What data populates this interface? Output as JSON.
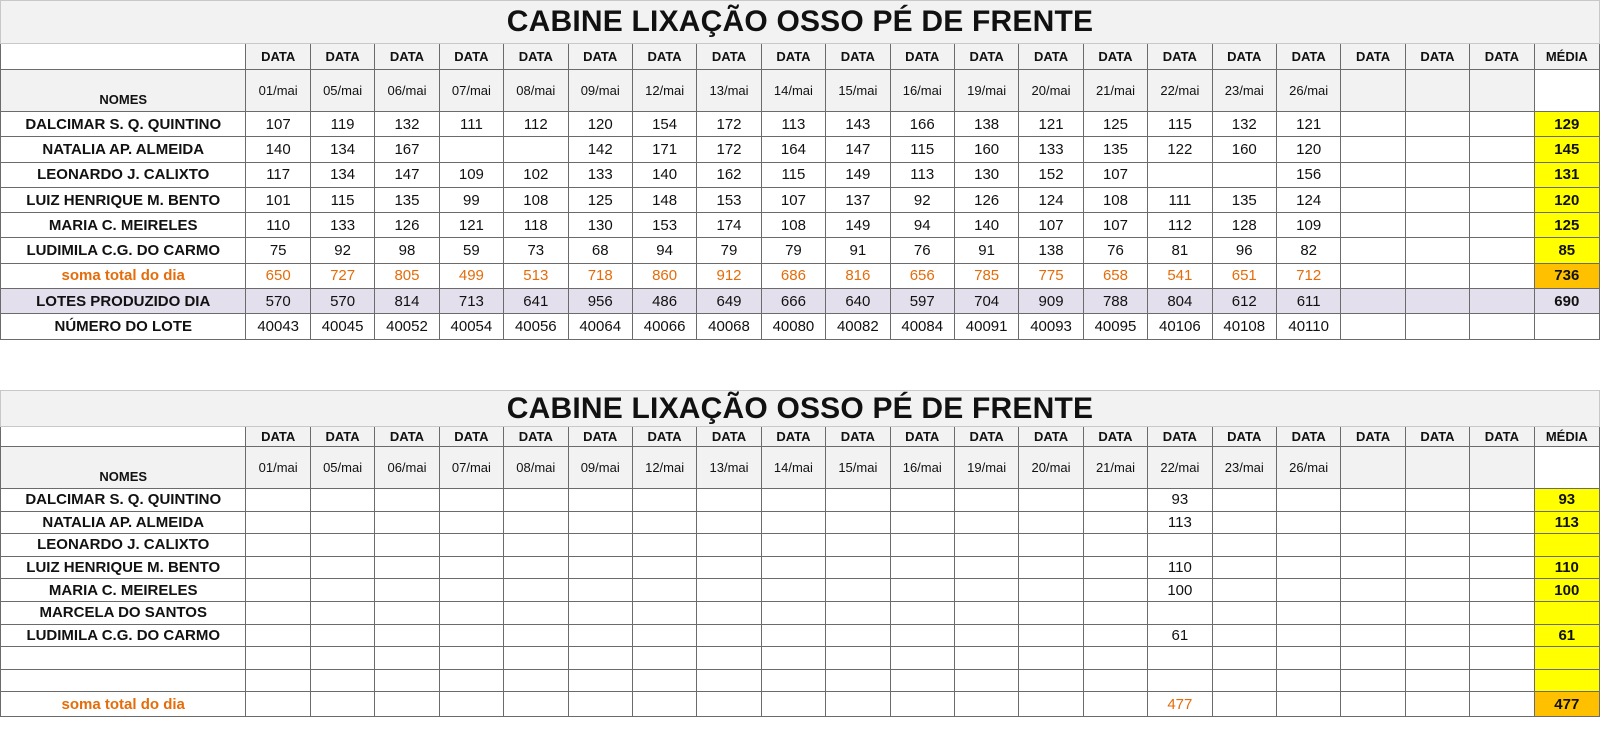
{
  "dates": [
    "01/mai",
    "05/mai",
    "06/mai",
    "07/mai",
    "08/mai",
    "09/mai",
    "12/mai",
    "13/mai",
    "14/mai",
    "15/mai",
    "16/mai",
    "19/mai",
    "20/mai",
    "21/mai",
    "22/mai",
    "23/mai",
    "26/mai",
    "",
    "",
    ""
  ],
  "labels": {
    "data": "DATA",
    "media": "MÉDIA",
    "nomes": "NOMES"
  },
  "table1": {
    "title": "CABINE LIXAÇÃO OSSO PÉ DE  FRENTE",
    "rows": [
      {
        "name": "DALCIMAR S. Q. QUINTINO",
        "values": [
          "107",
          "119",
          "132",
          "111",
          "112",
          "120",
          "154",
          "172",
          "113",
          "143",
          "166",
          "138",
          "121",
          "125",
          "115",
          "132",
          "121",
          "",
          "",
          ""
        ],
        "avg": "129"
      },
      {
        "name": "NATALIA AP. ALMEIDA",
        "values": [
          "140",
          "134",
          "167",
          "",
          "",
          "142",
          "171",
          "172",
          "164",
          "147",
          "115",
          "160",
          "133",
          "135",
          "122",
          "160",
          "120",
          "",
          "",
          ""
        ],
        "avg": "145"
      },
      {
        "name": "LEONARDO J. CALIXTO",
        "values": [
          "117",
          "134",
          "147",
          "109",
          "102",
          "133",
          "140",
          "162",
          "115",
          "149",
          "113",
          "130",
          "152",
          "107",
          "",
          "",
          "156",
          "",
          "",
          ""
        ],
        "avg": "131"
      },
      {
        "name": "LUIZ HENRIQUE M. BENTO",
        "values": [
          "101",
          "115",
          "135",
          "99",
          "108",
          "125",
          "148",
          "153",
          "107",
          "137",
          "92",
          "126",
          "124",
          "108",
          "111",
          "135",
          "124",
          "",
          "",
          ""
        ],
        "avg": "120"
      },
      {
        "name": "MARIA C. MEIRELES",
        "values": [
          "110",
          "133",
          "126",
          "121",
          "118",
          "130",
          "153",
          "174",
          "108",
          "149",
          "94",
          "140",
          "107",
          "107",
          "112",
          "128",
          "109",
          "",
          "",
          ""
        ],
        "avg": "125"
      },
      {
        "name": "LUDIMILA C.G. DO CARMO",
        "values": [
          "75",
          "92",
          "98",
          "59",
          "73",
          "68",
          "94",
          "79",
          "79",
          "91",
          "76",
          "91",
          "138",
          "76",
          "81",
          "96",
          "82",
          "",
          "",
          ""
        ],
        "avg": "85"
      }
    ],
    "soma": {
      "label": "soma total  do dia",
      "values": [
        "650",
        "727",
        "805",
        "499",
        "513",
        "718",
        "860",
        "912",
        "686",
        "816",
        "656",
        "785",
        "775",
        "658",
        "541",
        "651",
        "712",
        "",
        "",
        ""
      ],
      "avg": "736"
    },
    "lotes": {
      "label": "LOTES PRODUZIDO DIA",
      "values": [
        "570",
        "570",
        "814",
        "713",
        "641",
        "956",
        "486",
        "649",
        "666",
        "640",
        "597",
        "704",
        "909",
        "788",
        "804",
        "612",
        "611",
        "",
        "",
        ""
      ],
      "avg": "690"
    },
    "numero": {
      "label": "NÚMERO DO LOTE",
      "values": [
        "40043",
        "40045",
        "40052",
        "40054",
        "40056",
        "40064",
        "40066",
        "40068",
        "40080",
        "40082",
        "40084",
        "40091",
        "40093",
        "40095",
        "40106",
        "40108",
        "40110",
        "",
        "",
        ""
      ]
    }
  },
  "table2": {
    "title": "CABINE LIXAÇÃO OSSO PÉ DE  FRENTE",
    "rows": [
      {
        "name": "DALCIMAR S. Q. QUINTINO",
        "values": [
          "",
          "",
          "",
          "",
          "",
          "",
          "",
          "",
          "",
          "",
          "",
          "",
          "",
          "",
          "93",
          "",
          "",
          "",
          "",
          ""
        ],
        "avg": "93"
      },
      {
        "name": "NATALIA AP. ALMEIDA",
        "values": [
          "",
          "",
          "",
          "",
          "",
          "",
          "",
          "",
          "",
          "",
          "",
          "",
          "",
          "",
          "113",
          "",
          "",
          "",
          "",
          ""
        ],
        "avg": "113"
      },
      {
        "name": "LEONARDO J. CALIXTO",
        "values": [
          "",
          "",
          "",
          "",
          "",
          "",
          "",
          "",
          "",
          "",
          "",
          "",
          "",
          "",
          "",
          "",
          "",
          "",
          "",
          ""
        ],
        "avg": ""
      },
      {
        "name": "LUIZ HENRIQUE M. BENTO",
        "values": [
          "",
          "",
          "",
          "",
          "",
          "",
          "",
          "",
          "",
          "",
          "",
          "",
          "",
          "",
          "110",
          "",
          "",
          "",
          "",
          ""
        ],
        "avg": "110"
      },
      {
        "name": "MARIA C. MEIRELES",
        "values": [
          "",
          "",
          "",
          "",
          "",
          "",
          "",
          "",
          "",
          "",
          "",
          "",
          "",
          "",
          "100",
          "",
          "",
          "",
          "",
          ""
        ],
        "avg": "100"
      },
      {
        "name": "MARCELA DO SANTOS",
        "values": [
          "",
          "",
          "",
          "",
          "",
          "",
          "",
          "",
          "",
          "",
          "",
          "",
          "",
          "",
          "",
          "",
          "",
          "",
          "",
          ""
        ],
        "avg": ""
      },
      {
        "name": "LUDIMILA C.G. DO CARMO",
        "values": [
          "",
          "",
          "",
          "",
          "",
          "",
          "",
          "",
          "",
          "",
          "",
          "",
          "",
          "",
          "61",
          "",
          "",
          "",
          "",
          ""
        ],
        "avg": "61"
      },
      {
        "name": "",
        "values": [
          "",
          "",
          "",
          "",
          "",
          "",
          "",
          "",
          "",
          "",
          "",
          "",
          "",
          "",
          "",
          "",
          "",
          "",
          "",
          ""
        ],
        "avg": ""
      },
      {
        "name": "",
        "values": [
          "",
          "",
          "",
          "",
          "",
          "",
          "",
          "",
          "",
          "",
          "",
          "",
          "",
          "",
          "",
          "",
          "",
          "",
          "",
          ""
        ],
        "avg": ""
      }
    ],
    "soma": {
      "label": "soma total  do dia",
      "values": [
        "",
        "",
        "",
        "",
        "",
        "",
        "",
        "",
        "",
        "",
        "",
        "",
        "",
        "",
        "477",
        "",
        "",
        "",
        "",
        ""
      ],
      "avg": "477"
    }
  },
  "colors": {
    "average": "#ffff00",
    "average_total": "#ffc000",
    "soma_text": "#e46c0a",
    "lotes_row": "#e4dfec",
    "header_bg": "#f2f2f2"
  }
}
